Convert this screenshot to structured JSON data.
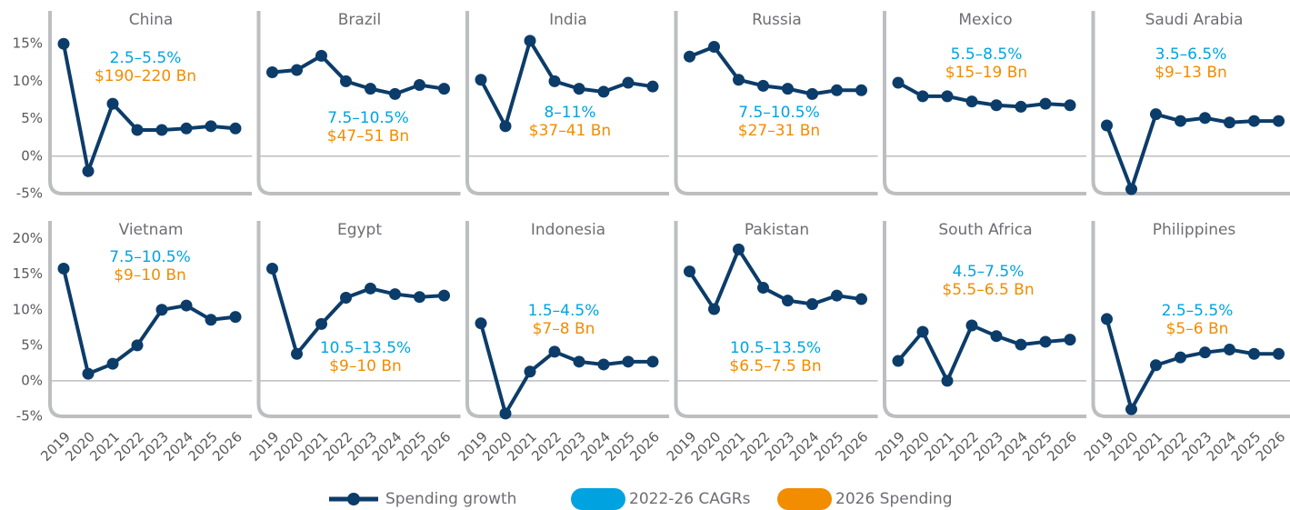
{
  "chart_data": [
    {
      "type": "line",
      "title": "China",
      "ylim": [
        -5,
        20
      ],
      "yticks": [
        {
          "value": -5,
          "label": "-5%"
        },
        {
          "value": 0,
          "label": "0%"
        },
        {
          "value": 5,
          "label": "5%"
        },
        {
          "value": 10,
          "label": "10%"
        },
        {
          "value": 15,
          "label": "15%"
        }
      ],
      "values": [
        15,
        -2,
        7,
        3.5,
        3.5,
        3.7,
        4,
        3.7
      ],
      "color": "#0c3c69",
      "cagr": "2.5–5.5%",
      "spending": "$190–220 Bn"
    },
    {
      "type": "line",
      "title": "Brazil",
      "ylim": [
        -5,
        20
      ],
      "values": [
        11.2,
        11.5,
        13.4,
        10,
        9,
        8.3,
        9.5,
        9
      ],
      "color": "#0c3c69",
      "cagr": "7.5–10.5%",
      "spending": "$47–51 Bn"
    },
    {
      "type": "line",
      "title": "India",
      "ylim": [
        -5,
        20
      ],
      "values": [
        10.2,
        4,
        15.4,
        10,
        9,
        8.6,
        9.8,
        9.3
      ],
      "color": "#0c3c69",
      "cagr": "8–11%",
      "spending": "$37–41 Bn"
    },
    {
      "type": "line",
      "title": "Russia",
      "ylim": [
        -5,
        20
      ],
      "values": [
        13.3,
        14.6,
        10.2,
        9.4,
        9,
        8.3,
        8.8,
        8.8
      ],
      "color": "#0c3c69",
      "cagr": "7.5–10.5%",
      "spending": "$27–31 Bn"
    },
    {
      "type": "line",
      "title": "Mexico",
      "ylim": [
        -5,
        20
      ],
      "values": [
        9.8,
        8,
        8,
        7.3,
        6.8,
        6.6,
        7,
        6.8
      ],
      "color": "#0c3c69",
      "cagr": "5.5–8.5%",
      "spending": "$15–19 Bn"
    },
    {
      "type": "line",
      "title": "Saudi Arabia",
      "ylim": [
        -5,
        20
      ],
      "values": [
        4.1,
        -4.4,
        5.6,
        4.7,
        5.1,
        4.5,
        4.7,
        4.7
      ],
      "color": "#0c3c69",
      "cagr": "3.5–6.5%",
      "spending": "$9–13 Bn"
    },
    {
      "type": "line",
      "title": "Vietnam",
      "ylim": [
        -5,
        22
      ],
      "yticks": [
        {
          "value": -5,
          "label": "-5%"
        },
        {
          "value": 0,
          "label": "0%"
        },
        {
          "value": 5,
          "label": "5%"
        },
        {
          "value": 10,
          "label": "10%"
        },
        {
          "value": 15,
          "label": "15%"
        },
        {
          "value": 20,
          "label": "20%"
        }
      ],
      "categories": [
        "2019",
        "2020",
        "2021",
        "2022",
        "2023",
        "2024",
        "2025",
        "2026"
      ],
      "values": [
        15.8,
        1,
        2.4,
        5,
        10,
        10.6,
        8.6,
        9
      ],
      "color": "#0c3c69",
      "cagr": "7.5–10.5%",
      "spending": "$9–10 Bn"
    },
    {
      "type": "line",
      "title": "Egypt",
      "ylim": [
        -5,
        22
      ],
      "categories": [
        "2019",
        "2020",
        "2021",
        "2022",
        "2023",
        "2024",
        "2025",
        "2026"
      ],
      "values": [
        15.8,
        3.8,
        8,
        11.7,
        13,
        12.2,
        11.8,
        12
      ],
      "color": "#0c3c69",
      "cagr": "10.5–13.5%",
      "spending": "$9–10 Bn"
    },
    {
      "type": "line",
      "title": "Indonesia",
      "ylim": [
        -5,
        22
      ],
      "categories": [
        "2019",
        "2020",
        "2021",
        "2022",
        "2023",
        "2024",
        "2025",
        "2026"
      ],
      "values": [
        8.1,
        -4.6,
        1.3,
        4.1,
        2.7,
        2.3,
        2.7,
        2.7
      ],
      "color": "#0c3c69",
      "cagr": "1.5–4.5%",
      "spending": "$7–8 Bn"
    },
    {
      "type": "line",
      "title": "Pakistan",
      "ylim": [
        -5,
        22
      ],
      "categories": [
        "2019",
        "2020",
        "2021",
        "2022",
        "2023",
        "2024",
        "2025",
        "2026"
      ],
      "values": [
        15.4,
        10.1,
        18.5,
        13.1,
        11.3,
        10.8,
        12,
        11.5
      ],
      "color": "#0c3c69",
      "cagr": "10.5–13.5%",
      "spending": "$6.5–7.5 Bn"
    },
    {
      "type": "line",
      "title": "South Africa",
      "ylim": [
        -5,
        22
      ],
      "categories": [
        "2019",
        "2020",
        "2021",
        "2022",
        "2023",
        "2024",
        "2025",
        "2026"
      ],
      "values": [
        2.8,
        6.9,
        0,
        7.8,
        6.3,
        5.1,
        5.5,
        5.8
      ],
      "color": "#0c3c69",
      "cagr": "4.5–7.5%",
      "spending": "$5.5–6.5 Bn"
    },
    {
      "type": "line",
      "title": "Philippines",
      "ylim": [
        -5,
        22
      ],
      "categories": [
        "2019",
        "2020",
        "2021",
        "2022",
        "2023",
        "2024",
        "2025",
        "2026"
      ],
      "values": [
        8.7,
        -4,
        2.2,
        3.3,
        4,
        4.4,
        3.8,
        3.8
      ],
      "color": "#0c3c69",
      "cagr": "2.5–5.5%",
      "spending": "$5–6 Bn"
    }
  ],
  "legend": {
    "items": [
      {
        "label": "Spending growth",
        "color": "#0c3c69"
      },
      {
        "label": "2022-26 CAGRs",
        "color": "#00a3e0"
      },
      {
        "label": "2026 Spending",
        "color": "#f28c00"
      }
    ]
  }
}
